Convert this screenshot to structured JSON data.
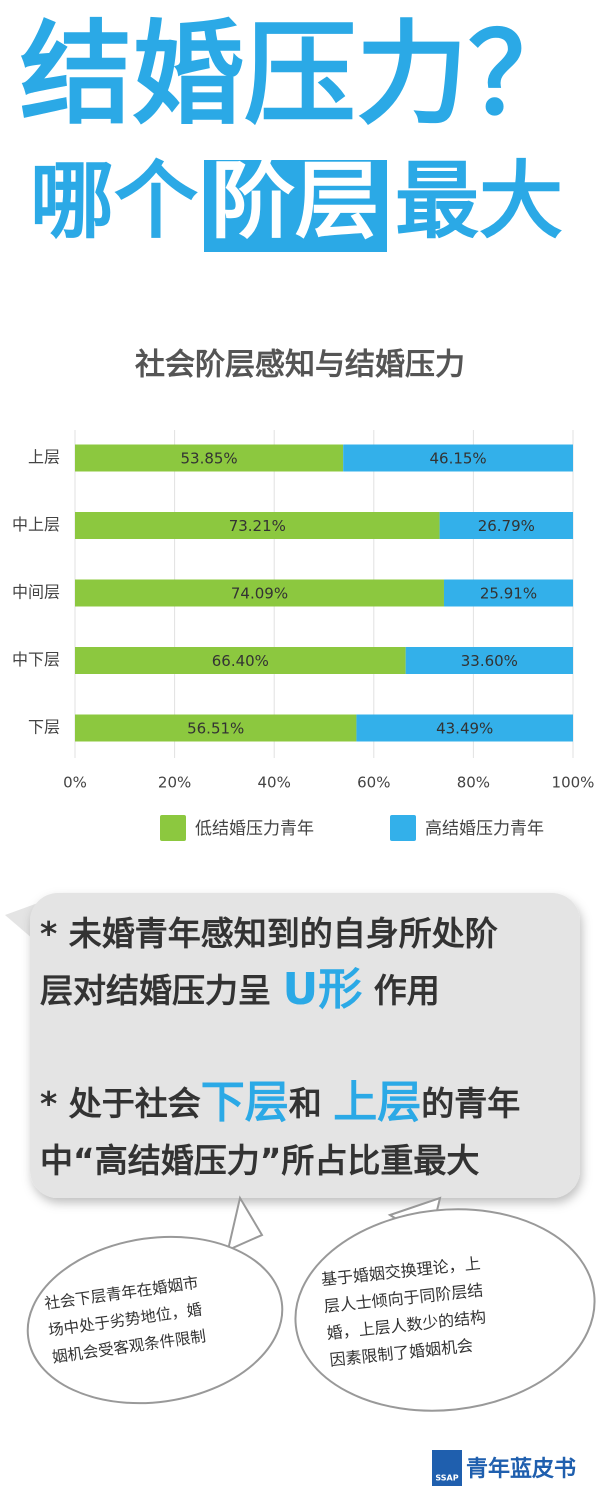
{
  "headline": {
    "line1": "结婚压力？",
    "line2_start": "哪个",
    "line2_highlight": "阶层",
    "line2_end": "最大"
  },
  "chart_data": {
    "type": "stacked_bar_horizontal",
    "title": "社会阶层感知与结婚压力",
    "categories": [
      "上层",
      "中上层",
      "中间层",
      "中下层",
      "下层"
    ],
    "series": [
      {
        "name": "低结婚压力青年",
        "color": "#8cc83f",
        "values": [
          53.85,
          73.21,
          74.09,
          66.4,
          56.51
        ],
        "value_labels": [
          "53.85%",
          "73.21%",
          "74.09%",
          "66.40%",
          "56.51%"
        ]
      },
      {
        "name": "高结婚压力青年",
        "color": "#33b0ea",
        "values": [
          46.15,
          26.79,
          25.91,
          33.6,
          43.49
        ],
        "value_labels": [
          "46.15%",
          "26.79%",
          "25.91%",
          "33.60%",
          "43.49%"
        ]
      }
    ],
    "xlim": [
      0,
      100
    ],
    "xticks": [
      {
        "value": 0,
        "label": "0%"
      },
      {
        "value": 20,
        "label": "20%"
      },
      {
        "value": 40,
        "label": "40%"
      },
      {
        "value": 60,
        "label": "60%"
      },
      {
        "value": 80,
        "label": "80%"
      },
      {
        "value": 100,
        "label": "100%"
      }
    ],
    "grid": true,
    "legend": "bottom"
  },
  "callout": {
    "lines": [
      [
        "* 未婚青年感知到的自身所处阶"
      ],
      [
        "层对结婚压力呈 ",
        "U形",
        " 作用"
      ],
      [
        "* 处于社会",
        "下层",
        "和 ",
        "上层",
        "的青年"
      ],
      [
        "中“高结婚压力”所占比重最大"
      ]
    ]
  },
  "bubbles": [
    {
      "lines": [
        "社会下层青年在婚姻市",
        "场中处于劣势地位，婚",
        "姻机会受客观条件限制"
      ]
    },
    {
      "lines": [
        "基于婚姻交换理论，上",
        "层人士倾向于同阶层结",
        "婚，上层人数少的结构",
        "因素限制了婚姻机会"
      ]
    }
  ],
  "logo": {
    "mark": "SSAP",
    "text": "青年蓝皮书"
  }
}
